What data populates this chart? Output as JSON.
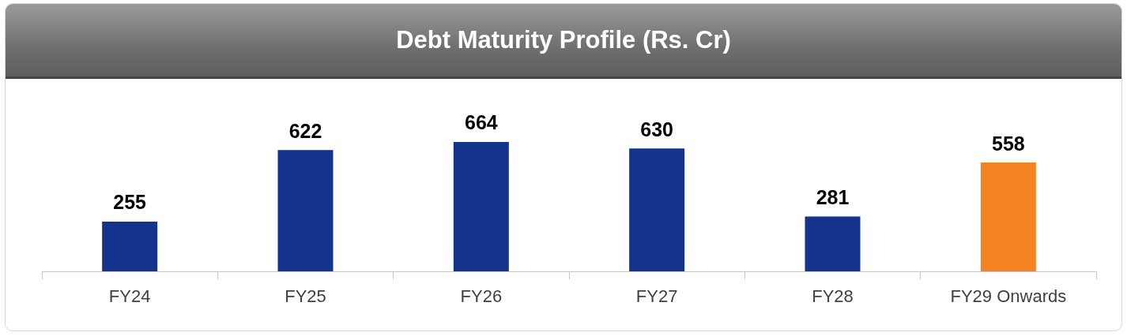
{
  "chart_data": {
    "type": "bar",
    "title": "Debt Maturity Profile (Rs. Cr)",
    "categories": [
      "FY24",
      "FY25",
      "FY26",
      "FY27",
      "FY28",
      "FY29 Onwards"
    ],
    "values": [
      255,
      622,
      664,
      630,
      281,
      558
    ],
    "colors": [
      "#14338c",
      "#14338c",
      "#14338c",
      "#14338c",
      "#14338c",
      "#f58220"
    ],
    "data_labels": true
  }
}
